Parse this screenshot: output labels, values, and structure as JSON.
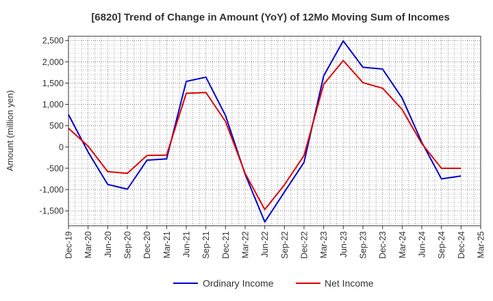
{
  "chart_data": {
    "type": "line",
    "title": "[6820]  Trend of Change in Amount (YoY) of 12Mo Moving Sum of Incomes",
    "xlabel": "",
    "ylabel": "Amount (million yen)",
    "categories": [
      "Dec-19",
      "Mar-20",
      "Jun-20",
      "Sep-20",
      "Dec-20",
      "Mar-21",
      "Jun-21",
      "Sep-21",
      "Dec-21",
      "Mar-22",
      "Jun-22",
      "Sep-22",
      "Dec-22",
      "Mar-23",
      "Jun-23",
      "Sep-23",
      "Dec-23",
      "Mar-24",
      "Jun-24",
      "Sep-24",
      "Dec-24",
      "Mar-25"
    ],
    "yticks": [
      -1500,
      -1000,
      -500,
      0,
      500,
      1000,
      1500,
      2000,
      2500
    ],
    "ytick_labels": [
      "-1,500",
      "-1,000",
      "-500",
      "0",
      "500",
      "1,000",
      "1,500",
      "2,000",
      "2,500"
    ],
    "ylim": [
      -1850,
      2600
    ],
    "grid": true,
    "legend_position": "bottom",
    "series": [
      {
        "name": "Ordinary Income",
        "color": "#0000cc",
        "values": [
          760,
          -120,
          -880,
          -990,
          -310,
          -280,
          1540,
          1640,
          740,
          -640,
          -1760,
          -1060,
          -360,
          1670,
          2490,
          1870,
          1830,
          1150,
          110,
          -750,
          -680,
          null
        ]
      },
      {
        "name": "Net Income",
        "color": "#dd0000",
        "values": [
          440,
          20,
          -580,
          -620,
          -200,
          -190,
          1260,
          1280,
          600,
          -620,
          -1470,
          -890,
          -200,
          1470,
          2030,
          1510,
          1380,
          880,
          80,
          -500,
          -500,
          null
        ]
      }
    ]
  }
}
